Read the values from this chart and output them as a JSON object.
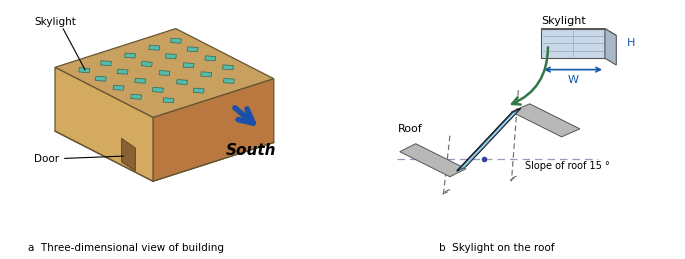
{
  "caption_a": "a  Three-dimensional view of building",
  "caption_b": "b  Skylight on the roof",
  "label_skylight_left": "Skylight",
  "label_door": "Door",
  "label_south": "South",
  "label_roof": "Roof",
  "label_skylight_right": "Skylight",
  "label_slope": "Slope of roof 15 °",
  "label_H": "H",
  "label_W": "W",
  "bg_color": "#ffffff",
  "roof_color": "#c8a060",
  "wall_front_color": "#b87840",
  "wall_left_color": "#d4aa60",
  "skylight_color": "#55bbaa",
  "arrow_color": "#1a4faa",
  "skylight_panel_color": "#aad8ee",
  "roof_panel_color": "#b0b0b0"
}
